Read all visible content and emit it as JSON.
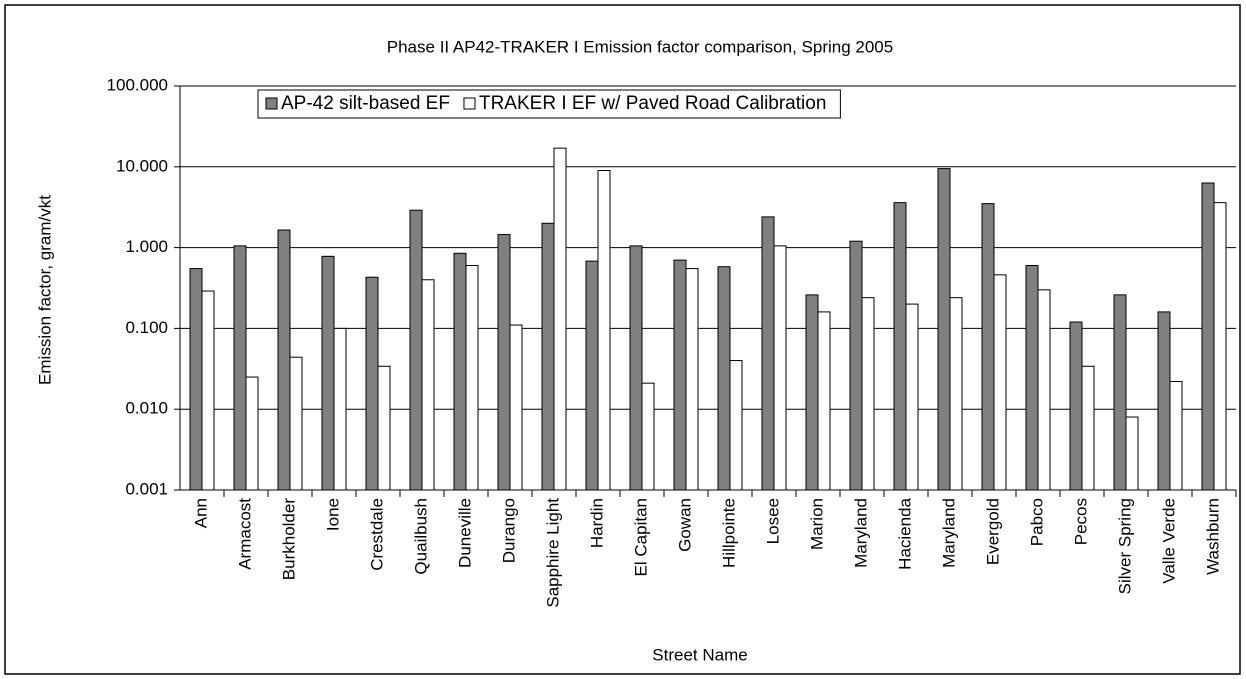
{
  "chart_data": {
    "type": "bar",
    "title": "Phase II AP42-TRAKER I Emission factor comparison, Spring 2005",
    "x_label": "Street Name",
    "y_label": "Emission factor, gram/vkt",
    "categories": [
      "Ann",
      "Armacost",
      "Burkholder",
      "Ione",
      "Crestdale",
      "Quailbush",
      "Duneville",
      "Durango",
      "Sapphire Light",
      "Hardin",
      "El Capitan",
      "Gowan",
      "Hillpointe",
      "Losee",
      "Marion",
      "Maryland",
      "Hacienda",
      "Maryland",
      "Evergold",
      "Pabco",
      "Pecos",
      "Silver Spring",
      "Valle Verde",
      "Washburn"
    ],
    "series": [
      {
        "name": "AP-42 silt-based EF",
        "color": "#808080",
        "values": [
          0.55,
          1.05,
          1.65,
          0.78,
          0.43,
          2.9,
          0.85,
          1.45,
          2.0,
          0.68,
          1.05,
          0.7,
          0.58,
          2.4,
          0.26,
          1.2,
          3.6,
          9.5,
          3.5,
          0.6,
          0.12,
          0.26,
          0.16,
          6.3
        ]
      },
      {
        "name": "TRAKER I EF w/ Paved Road Calibration",
        "color": "#ffffff",
        "values": [
          0.29,
          0.025,
          0.044,
          0.1,
          0.034,
          0.4,
          0.6,
          0.11,
          17,
          9.0,
          0.021,
          0.55,
          0.04,
          1.05,
          0.16,
          0.24,
          0.2,
          0.24,
          0.46,
          0.3,
          0.034,
          0.008,
          0.022,
          3.6
        ]
      }
    ],
    "log_scale": true,
    "ylim": [
      0.001,
      100
    ],
    "yticks": [
      {
        "value": 0.001,
        "label": "0.001"
      },
      {
        "value": 0.01,
        "label": "0.010"
      },
      {
        "value": 0.1,
        "label": "0.100"
      },
      {
        "value": 1,
        "label": "1.000"
      },
      {
        "value": 10,
        "label": "10.000"
      },
      {
        "value": 100,
        "label": "100.000"
      }
    ],
    "grid": true,
    "legend": "top"
  }
}
